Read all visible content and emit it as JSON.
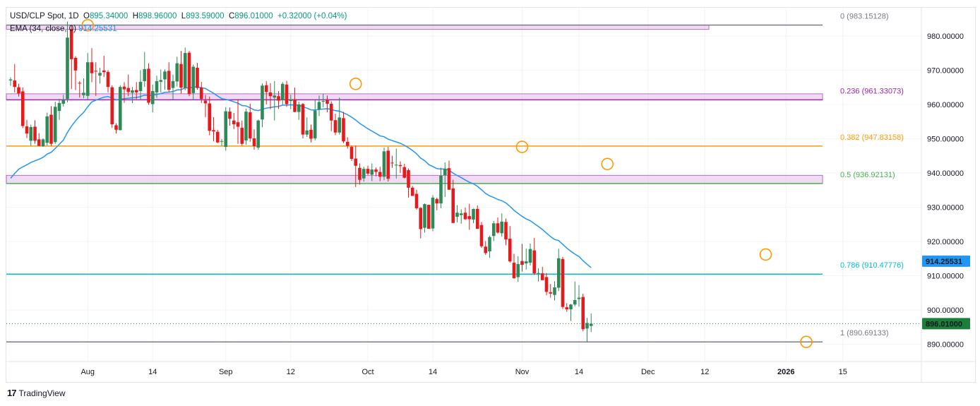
{
  "legend": {
    "symbol": "USD/CLP Spot, 1D",
    "o_label": "O",
    "o_value": "895.34000",
    "h_label": "H",
    "h_value": "898.96000",
    "l_label": "L",
    "l_value": "893.59000",
    "c_label": "C",
    "c_value": "896.01000",
    "change": "+0.32000 (+0.04%)",
    "ema_label": "EMA (34, close, 0)",
    "ema_value": "914.25531"
  },
  "branding": {
    "logo": "17",
    "name": "TradingView"
  },
  "colors": {
    "up": "#26a69a",
    "up_body": "#2e8b57",
    "down": "#e41a1c",
    "ema": "#2196f3",
    "fib_0": "#787b86",
    "fib_0236": "#9c27b0",
    "fib_0382": "#ff9800",
    "fib_05": "#4caf50",
    "fib_0786": "#00bcd4",
    "fib_1": "#787b86",
    "zone": "#e1bee7",
    "marker": "#ff9800",
    "price_tag": "#1b7f3a",
    "ema_tag": "#2196f3"
  },
  "chart_data": {
    "type": "candlestick",
    "symbol": "USD/CLP Spot",
    "interval": "1D",
    "ylim": [
      886,
      988
    ],
    "y_ticks": [
      {
        "value": 890,
        "label": "890.00000"
      },
      {
        "value": 900,
        "label": "900.00000"
      },
      {
        "value": 910,
        "label": "910.00000"
      },
      {
        "value": 920,
        "label": "920.00000"
      },
      {
        "value": 930,
        "label": "930.00000"
      },
      {
        "value": 940,
        "label": "940.00000"
      },
      {
        "value": 950,
        "label": "950.00000"
      },
      {
        "value": 960,
        "label": "960.00000"
      },
      {
        "value": 970,
        "label": "970.00000"
      },
      {
        "value": 980,
        "label": "980.00000"
      }
    ],
    "x_ticks": [
      {
        "label": "Aug",
        "index": 19,
        "bold": false
      },
      {
        "label": "14",
        "index": 35,
        "bold": false
      },
      {
        "label": "Sep",
        "index": 53,
        "bold": false
      },
      {
        "label": "12",
        "index": 69,
        "bold": false
      },
      {
        "label": "Oct",
        "index": 88,
        "bold": false
      },
      {
        "label": "14",
        "index": 104,
        "bold": false
      },
      {
        "label": "Nov",
        "index": 126,
        "bold": false
      },
      {
        "label": "14",
        "index": 140,
        "bold": false
      },
      {
        "label": "Dec",
        "index": 157,
        "bold": false
      },
      {
        "label": "12",
        "index": 171,
        "bold": false
      },
      {
        "label": "2026",
        "index": 191,
        "bold": true
      },
      {
        "label": "15",
        "index": 205,
        "bold": false
      }
    ],
    "fib_levels": [
      {
        "ratio": "0",
        "value": 983.15128,
        "label": "0 (983.15128)",
        "color": "#787b86"
      },
      {
        "ratio": "0.236",
        "value": 961.33073,
        "label": "0.236 (961.33073)",
        "color": "#9c27b0"
      },
      {
        "ratio": "0.382",
        "value": 947.83158,
        "label": "0.382 (947.83158)",
        "color": "#ff9800"
      },
      {
        "ratio": "0.5",
        "value": 936.92131,
        "label": "0.5 (936.92131)",
        "color": "#4caf50"
      },
      {
        "ratio": "0.786",
        "value": 910.47776,
        "label": "0.786 (910.47776)",
        "color": "#00bcd4"
      },
      {
        "ratio": "1",
        "value": 890.69133,
        "label": "1 (890.69133)",
        "color": "#787b86"
      }
    ],
    "zones": [
      {
        "top": 983.15,
        "bottom": 981.9,
        "x_end": 172
      },
      {
        "top": 963.1,
        "bottom": 961.33,
        "x_end": 200
      },
      {
        "top": 939.3,
        "bottom": 936.92,
        "x_end": 200
      }
    ],
    "markers": [
      {
        "index": 19,
        "value": 983.1
      },
      {
        "index": 85,
        "value": 966.0
      },
      {
        "index": 126,
        "value": 947.6
      },
      {
        "index": 147,
        "value": 942.6
      },
      {
        "index": 186,
        "value": 916.2
      },
      {
        "index": 196,
        "value": 890.7
      }
    ],
    "last_price": {
      "value": 896.01,
      "label": "896.01000"
    },
    "ema_tag": {
      "value": 914.25531,
      "label": "914.25531"
    },
    "candles": [
      [
        967.0,
        967.9,
        965.4,
        967.3
      ],
      [
        967.0,
        971.8,
        963.5,
        965.1
      ],
      [
        965.0,
        966.0,
        962.3,
        963.2
      ],
      [
        963.8,
        965.0,
        953.1,
        953.7
      ],
      [
        953.6,
        955.5,
        950.2,
        951.5
      ],
      [
        949.4,
        954.1,
        947.9,
        953.4
      ],
      [
        953.5,
        955.4,
        948.5,
        949.4
      ],
      [
        949.8,
        951.6,
        947.8,
        947.9
      ],
      [
        947.8,
        950.1,
        947.6,
        949.8
      ],
      [
        948.8,
        957.6,
        948.0,
        956.5
      ],
      [
        957.0,
        959.5,
        947.9,
        948.5
      ],
      [
        949.0,
        960.8,
        948.5,
        959.3
      ],
      [
        958.1,
        961.6,
        955.5,
        960.4
      ],
      [
        960.2,
        962.8,
        959.4,
        961.2
      ],
      [
        961.6,
        984.2,
        960.6,
        979.5
      ],
      [
        982.0,
        983.1,
        964.5,
        973.2
      ],
      [
        973.6,
        974.1,
        964.2,
        969.9
      ],
      [
        966.3,
        966.8,
        962.0,
        966.2
      ],
      [
        962.7,
        967.6,
        961.8,
        963.4
      ],
      [
        962.5,
        975.0,
        961.5,
        972.3
      ],
      [
        972.3,
        976.4,
        966.5,
        969.1
      ],
      [
        969.8,
        972.3,
        962.5,
        969.7
      ],
      [
        968.4,
        970.7,
        966.1,
        969.2
      ],
      [
        969.9,
        974.2,
        968.0,
        969.4
      ],
      [
        969.5,
        970.0,
        963.5,
        965.1
      ],
      [
        965.0,
        965.6,
        953.2,
        954.2
      ],
      [
        953.9,
        954.5,
        951.5,
        952.6
      ],
      [
        952.5,
        965.6,
        952.4,
        965.1
      ],
      [
        965.2,
        966.5,
        960.5,
        964.4
      ],
      [
        964.8,
        968.7,
        962.4,
        963.6
      ],
      [
        963.4,
        965.1,
        960.4,
        964.1
      ],
      [
        964.2,
        966.5,
        961.6,
        963.5
      ],
      [
        963.9,
        970.0,
        961.5,
        966.6
      ],
      [
        966.8,
        975.3,
        965.1,
        970.3
      ],
      [
        970.4,
        972.0,
        959.9,
        960.5
      ],
      [
        960.1,
        965.8,
        957.7,
        963.9
      ],
      [
        963.5,
        968.4,
        961.9,
        966.8
      ],
      [
        966.6,
        970.2,
        963.5,
        967.1
      ],
      [
        967.3,
        970.2,
        964.3,
        969.6
      ],
      [
        969.8,
        972.3,
        963.6,
        964.3
      ],
      [
        964.8,
        968.7,
        961.5,
        966.8
      ],
      [
        966.7,
        973.9,
        965.2,
        972.0
      ],
      [
        971.8,
        975.6,
        963.2,
        964.9
      ],
      [
        964.8,
        976.6,
        964.1,
        975.0
      ],
      [
        975.1,
        975.6,
        962.4,
        963.0
      ],
      [
        963.3,
        971.6,
        961.2,
        971.0
      ],
      [
        970.7,
        972.1,
        964.3,
        964.8
      ],
      [
        964.9,
        966.6,
        960.4,
        961.6
      ],
      [
        961.1,
        962.8,
        956.3,
        960.3
      ],
      [
        960.3,
        962.3,
        951.0,
        952.3
      ],
      [
        952.5,
        956.3,
        949.2,
        952.1
      ],
      [
        952.0,
        952.6,
        948.7,
        948.9
      ],
      [
        949.2,
        949.9,
        947.9,
        949.3
      ],
      [
        947.6,
        959.2,
        946.5,
        958.0
      ],
      [
        957.9,
        959.1,
        953.8,
        955.8
      ],
      [
        955.3,
        957.5,
        952.8,
        954.2
      ],
      [
        954.8,
        961.5,
        948.5,
        953.5
      ],
      [
        953.2,
        955.3,
        948.0,
        948.5
      ],
      [
        949.5,
        958.8,
        948.2,
        957.9
      ],
      [
        957.7,
        960.2,
        949.1,
        950.1
      ],
      [
        950.1,
        952.7,
        946.8,
        947.8
      ],
      [
        947.4,
        955.6,
        946.8,
        955.3
      ],
      [
        955.6,
        966.1,
        953.3,
        965.5
      ],
      [
        965.6,
        966.8,
        960.0,
        963.6
      ],
      [
        963.5,
        966.2,
        958.6,
        962.4
      ],
      [
        962.0,
        966.8,
        955.3,
        962.6
      ],
      [
        962.4,
        963.9,
        958.7,
        961.1
      ],
      [
        961.3,
        966.5,
        959.9,
        966.0
      ],
      [
        965.8,
        966.9,
        959.3,
        960.1
      ],
      [
        961.0,
        962.8,
        958.6,
        961.5
      ],
      [
        961.5,
        964.9,
        957.7,
        957.8
      ],
      [
        957.8,
        960.8,
        955.5,
        960.0
      ],
      [
        960.1,
        960.4,
        950.1,
        951.2
      ],
      [
        951.2,
        956.2,
        950.5,
        952.4
      ],
      [
        952.6,
        954.1,
        948.9,
        950.0
      ],
      [
        950.1,
        961.2,
        949.5,
        958.2
      ],
      [
        958.5,
        962.6,
        956.6,
        960.7
      ],
      [
        960.9,
        963.1,
        959.2,
        961.0
      ],
      [
        961.3,
        962.6,
        957.7,
        960.2
      ],
      [
        960.2,
        960.9,
        952.2,
        955.3
      ],
      [
        955.4,
        957.3,
        951.0,
        951.8
      ],
      [
        951.8,
        962.0,
        951.2,
        956.2
      ],
      [
        956.0,
        957.8,
        948.7,
        949.2
      ],
      [
        949.1,
        950.4,
        947.1,
        947.9
      ],
      [
        947.6,
        948.0,
        943.5,
        944.1
      ],
      [
        944.2,
        948.0,
        935.9,
        942.1
      ],
      [
        941.5,
        942.8,
        936.6,
        938.0
      ],
      [
        938.4,
        941.8,
        937.5,
        941.2
      ],
      [
        941.2,
        942.1,
        939.4,
        939.8
      ],
      [
        939.5,
        942.8,
        937.6,
        941.0
      ],
      [
        941.0,
        941.6,
        939.0,
        940.3
      ],
      [
        940.3,
        941.8,
        937.6,
        938.9
      ],
      [
        938.9,
        947.4,
        937.9,
        946.3
      ],
      [
        946.5,
        947.6,
        937.5,
        938.3
      ],
      [
        943.0,
        945.0,
        941.5,
        942.8
      ],
      [
        942.2,
        947.1,
        938.4,
        942.4
      ],
      [
        942.3,
        943.4,
        940.0,
        942.0
      ],
      [
        941.7,
        942.7,
        938.4,
        938.6
      ],
      [
        940.8,
        941.3,
        932.8,
        935.7
      ],
      [
        935.7,
        936.2,
        933.4,
        933.3
      ],
      [
        933.9,
        935.1,
        929.3,
        929.7
      ],
      [
        929.8,
        930.0,
        920.9,
        923.6
      ],
      [
        924.0,
        931.1,
        922.6,
        930.9
      ],
      [
        930.7,
        930.7,
        924.0,
        923.7
      ],
      [
        923.8,
        933.5,
        923.0,
        932.8
      ],
      [
        932.4,
        932.8,
        929.1,
        931.1
      ],
      [
        931.1,
        941.5,
        929.7,
        939.2
      ],
      [
        939.3,
        943.1,
        933.0,
        941.2
      ],
      [
        941.4,
        943.6,
        935.7,
        935.1
      ],
      [
        935.5,
        938.0,
        925.8,
        925.4
      ],
      [
        927.2,
        930.6,
        925.6,
        928.4
      ],
      [
        927.7,
        929.4,
        925.2,
        928.2
      ],
      [
        928.4,
        929.9,
        926.3,
        926.5
      ],
      [
        927.4,
        931.0,
        923.4,
        926.5
      ],
      [
        926.4,
        929.6,
        925.3,
        929.5
      ],
      [
        929.5,
        930.5,
        923.8,
        923.7
      ],
      [
        924.8,
        925.7,
        918.1,
        918.6
      ],
      [
        918.5,
        920.1,
        916.1,
        916.6
      ],
      [
        917.1,
        921.7,
        915.2,
        921.3
      ],
      [
        921.6,
        926.0,
        920.1,
        925.3
      ],
      [
        925.3,
        927.0,
        922.3,
        922.6
      ],
      [
        922.4,
        928.2,
        921.4,
        925.8
      ],
      [
        925.7,
        926.7,
        918.9,
        920.6
      ],
      [
        920.8,
        924.5,
        913.8,
        914.2
      ],
      [
        913.8,
        916.4,
        909.1,
        909.3
      ],
      [
        909.6,
        915.7,
        908.2,
        913.4
      ],
      [
        914.3,
        919.3,
        911.2,
        913.2
      ],
      [
        913.6,
        917.9,
        911.8,
        914.2
      ],
      [
        913.8,
        919.4,
        913.0,
        917.8
      ],
      [
        917.4,
        921.0,
        910.2,
        910.7
      ],
      [
        910.8,
        912.2,
        908.3,
        910.8
      ],
      [
        910.7,
        912.6,
        909.3,
        908.7
      ],
      [
        909.6,
        910.8,
        904.3,
        905.3
      ],
      [
        905.2,
        907.6,
        903.6,
        904.8
      ],
      [
        904.4,
        908.4,
        902.8,
        906.6
      ],
      [
        906.5,
        917.9,
        905.5,
        915.1
      ],
      [
        914.9,
        915.5,
        900.3,
        900.9
      ],
      [
        900.8,
        902.0,
        899.5,
        900.2
      ],
      [
        900.2,
        901.8,
        896.8,
        901.6
      ],
      [
        901.6,
        908.3,
        901.1,
        902.9
      ],
      [
        903.2,
        907.3,
        901.0,
        903.6
      ],
      [
        903.8,
        904.8,
        893.8,
        894.4
      ],
      [
        894.6,
        897.7,
        890.6,
        896.2
      ],
      [
        895.34,
        898.96,
        893.59,
        896.01
      ]
    ]
  }
}
